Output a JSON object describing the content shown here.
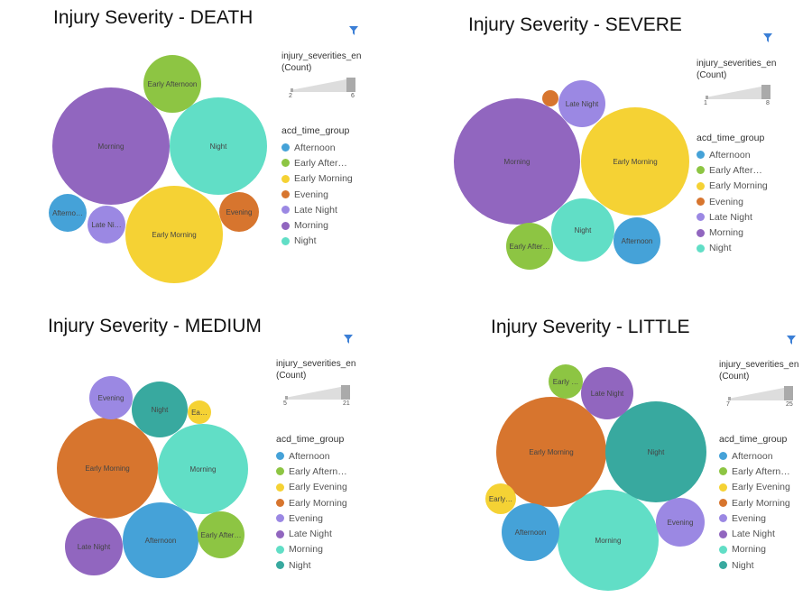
{
  "colors": {
    "Afternoon": "#45a2d8",
    "Early Afternoon": "#8dc543",
    "Early Morning": "#f5d234",
    "Evening": "#d7752e",
    "Late Night": "#9b88e3",
    "Morning": "#9166bf",
    "Night": "#61dec6"
  },
  "charts": [
    {
      "id": "death",
      "title": "Injury Severity - DEATH",
      "size_legend": {
        "title_line1": "injury_severities_en",
        "title_line2": "(Count)",
        "min": "2",
        "max": "6"
      },
      "color_legend": {
        "title": "acd_time_group",
        "items": [
          {
            "label": "Afternoon",
            "color": "#45a2d8"
          },
          {
            "label": "Early After…",
            "color": "#8dc543"
          },
          {
            "label": "Early Morning",
            "color": "#f5d234"
          },
          {
            "label": "Evening",
            "color": "#d7752e"
          },
          {
            "label": "Late Night",
            "color": "#9b88e3"
          },
          {
            "label": "Morning",
            "color": "#9166bf"
          },
          {
            "label": "Night",
            "color": "#61dec6"
          }
        ]
      }
    },
    {
      "id": "severe",
      "title": "Injury Severity - SEVERE",
      "size_legend": {
        "title_line1": "injury_severities_en",
        "title_line2": "(Count)",
        "min": "1",
        "max": "8"
      },
      "color_legend": {
        "title": "acd_time_group",
        "items": [
          {
            "label": "Afternoon",
            "color": "#45a2d8"
          },
          {
            "label": "Early After…",
            "color": "#8dc543"
          },
          {
            "label": "Early Morning",
            "color": "#f5d234"
          },
          {
            "label": "Evening",
            "color": "#d7752e"
          },
          {
            "label": "Late Night",
            "color": "#9b88e3"
          },
          {
            "label": "Morning",
            "color": "#9166bf"
          },
          {
            "label": "Night",
            "color": "#61dec6"
          }
        ]
      }
    },
    {
      "id": "medium",
      "title": "Injury Severity - MEDIUM",
      "size_legend": {
        "title_line1": "injury_severities_en",
        "title_line2": "(Count)",
        "min": "5",
        "max": "21"
      },
      "color_legend": {
        "title": "acd_time_group",
        "items": [
          {
            "label": "Afternoon",
            "color": "#45a2d8"
          },
          {
            "label": "Early Aftern…",
            "color": "#8dc543"
          },
          {
            "label": "Early Evening",
            "color": "#f5d234"
          },
          {
            "label": "Early Morning",
            "color": "#d7752e"
          },
          {
            "label": "Evening",
            "color": "#9b88e3"
          },
          {
            "label": "Late Night",
            "color": "#9166bf"
          },
          {
            "label": "Morning",
            "color": "#61dec6"
          },
          {
            "label": "Night",
            "color": "#38a99f"
          }
        ]
      }
    },
    {
      "id": "little",
      "title": "Injury Severity - LITTLE",
      "size_legend": {
        "title_line1": "injury_severities_en",
        "title_line2": "(Count)",
        "min": "7",
        "max": "25"
      },
      "color_legend": {
        "title": "acd_time_group",
        "items": [
          {
            "label": "Afternoon",
            "color": "#45a2d8"
          },
          {
            "label": "Early Aftern…",
            "color": "#8dc543"
          },
          {
            "label": "Early Evening",
            "color": "#f5d234"
          },
          {
            "label": "Early Morning",
            "color": "#d7752e"
          },
          {
            "label": "Evening",
            "color": "#9b88e3"
          },
          {
            "label": "Late Night",
            "color": "#9166bf"
          },
          {
            "label": "Morning",
            "color": "#61dec6"
          },
          {
            "label": "Night",
            "color": "#38a99f"
          }
        ]
      }
    }
  ],
  "chart_data": [
    {
      "type": "bubble",
      "title": "Injury Severity - DEATH",
      "size_field": "injury_severities_en (Count)",
      "color_field": "acd_time_group",
      "size_range": [
        2,
        6
      ],
      "points": [
        {
          "category": "Morning",
          "label": "Morning",
          "value": 6,
          "color": "#9166bf"
        },
        {
          "category": "Night",
          "label": "Night",
          "value": 4,
          "color": "#61dec6"
        },
        {
          "category": "Early Morning",
          "label": "Early Morning",
          "value": 4,
          "color": "#f5d234"
        },
        {
          "category": "Early Afternoon",
          "label": "Early Afternoon",
          "value": 2,
          "color": "#8dc543"
        },
        {
          "category": "Evening",
          "label": "Evening",
          "value": 1,
          "color": "#d7752e"
        },
        {
          "category": "Afternoon",
          "label": "Afterno…",
          "value": 1,
          "color": "#45a2d8"
        },
        {
          "category": "Late Night",
          "label": "Late Ni…",
          "value": 1,
          "color": "#9b88e3"
        }
      ]
    },
    {
      "type": "bubble",
      "title": "Injury Severity - SEVERE",
      "size_field": "injury_severities_en (Count)",
      "color_field": "acd_time_group",
      "size_range": [
        1,
        8
      ],
      "points": [
        {
          "category": "Morning",
          "label": "Morning",
          "value": 8,
          "color": "#9166bf"
        },
        {
          "category": "Early Morning",
          "label": "Early Morning",
          "value": 6,
          "color": "#f5d234"
        },
        {
          "category": "Night",
          "label": "Night",
          "value": 2,
          "color": "#61dec6"
        },
        {
          "category": "Afternoon",
          "label": "Afternoon",
          "value": 2,
          "color": "#45a2d8"
        },
        {
          "category": "Early Afternoon",
          "label": "Early After…",
          "value": 1,
          "color": "#8dc543"
        },
        {
          "category": "Late Night",
          "label": "Late Night",
          "value": 1,
          "color": "#9b88e3"
        },
        {
          "category": "Evening",
          "label": "",
          "value": 0.1,
          "color": "#d7752e"
        }
      ]
    },
    {
      "type": "bubble",
      "title": "Injury Severity - MEDIUM",
      "size_field": "injury_severities_en (Count)",
      "color_field": "acd_time_group",
      "size_range": [
        5,
        21
      ],
      "points": [
        {
          "category": "Early Morning",
          "label": "Early Morning",
          "value": 21,
          "color": "#d7752e"
        },
        {
          "category": "Morning",
          "label": "Morning",
          "value": 18,
          "color": "#61dec6"
        },
        {
          "category": "Afternoon",
          "label": "Afternoon",
          "value": 12,
          "color": "#45a2d8"
        },
        {
          "category": "Late Night",
          "label": "Late Night",
          "value": 7,
          "color": "#9166bf"
        },
        {
          "category": "Night",
          "label": "Night",
          "value": 7,
          "color": "#38a99f"
        },
        {
          "category": "Early Afternoon",
          "label": "Early After…",
          "value": 5,
          "color": "#8dc543"
        },
        {
          "category": "Evening",
          "label": "Evening",
          "value": 4,
          "color": "#9b88e3"
        },
        {
          "category": "Early Evening",
          "label": "Ea…",
          "value": 1,
          "color": "#f5d234"
        }
      ]
    },
    {
      "type": "bubble",
      "title": "Injury Severity - LITTLE",
      "size_field": "injury_severities_en (Count)",
      "color_field": "acd_time_group",
      "size_range": [
        7,
        25
      ],
      "points": [
        {
          "category": "Morning",
          "label": "Morning",
          "value": 25,
          "color": "#61dec6"
        },
        {
          "category": "Early Morning",
          "label": "Early Morning",
          "value": 24,
          "color": "#d7752e"
        },
        {
          "category": "Night",
          "label": "Night",
          "value": 20,
          "color": "#38a99f"
        },
        {
          "category": "Afternoon",
          "label": "Afternoon",
          "value": 7,
          "color": "#45a2d8"
        },
        {
          "category": "Evening",
          "label": "Evening",
          "value": 6,
          "color": "#9b88e3"
        },
        {
          "category": "Late Night",
          "label": "Late Night",
          "value": 6,
          "color": "#9166bf"
        },
        {
          "category": "Early Afternoon",
          "label": "Early …",
          "value": 2,
          "color": "#8dc543"
        },
        {
          "category": "Early Evening",
          "label": "Early…",
          "value": 1.5,
          "color": "#f5d234"
        }
      ]
    }
  ]
}
